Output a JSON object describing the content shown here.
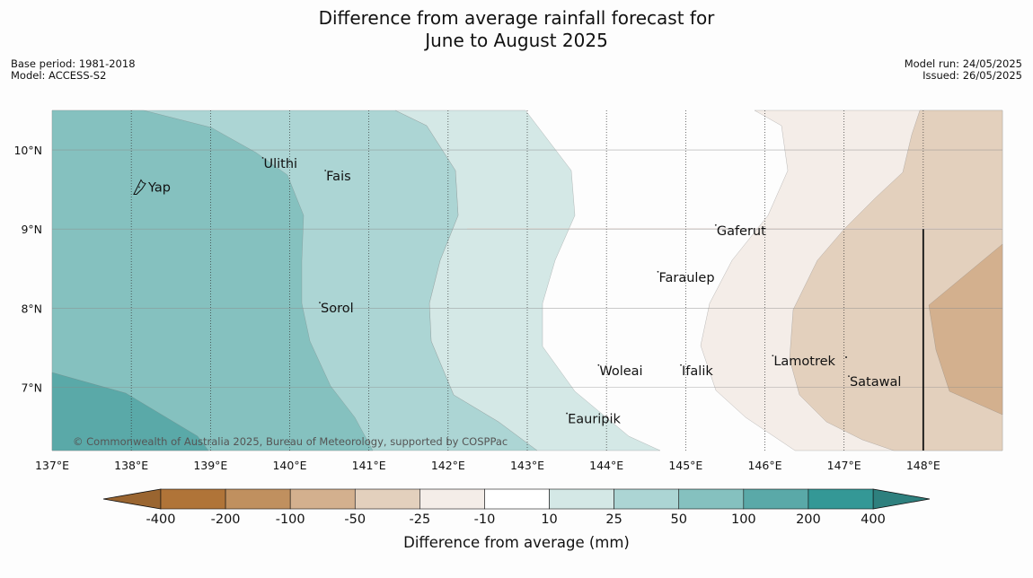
{
  "title_line1": "Difference from average rainfall forecast for",
  "title_line2": "June to August 2025",
  "meta": {
    "base_period": "Base period: 1981-2018",
    "model": "Model: ACCESS-S2",
    "model_run": "Model run: 24/05/2025",
    "issued": "Issued: 26/05/2025"
  },
  "copyright": "© Commonwealth of Australia 2025, Bureau of Meteorology, supported by COSPPac",
  "map": {
    "lon_range": [
      137,
      149
    ],
    "lat_range": [
      6.2,
      10.5
    ],
    "lon_ticks": [
      {
        "value": 137,
        "label": "137°E"
      },
      {
        "value": 138,
        "label": "138°E"
      },
      {
        "value": 139,
        "label": "139°E"
      },
      {
        "value": 140,
        "label": "140°E"
      },
      {
        "value": 141,
        "label": "141°E"
      },
      {
        "value": 142,
        "label": "142°E"
      },
      {
        "value": 143,
        "label": "143°E"
      },
      {
        "value": 144,
        "label": "144°E"
      },
      {
        "value": 145,
        "label": "145°E"
      },
      {
        "value": 146,
        "label": "146°E"
      },
      {
        "value": 147,
        "label": "147°E"
      },
      {
        "value": 148,
        "label": "148°E"
      }
    ],
    "lat_ticks": [
      {
        "value": 10,
        "label": "10°N"
      },
      {
        "value": 9,
        "label": "9°N"
      },
      {
        "value": 8,
        "label": "8°N"
      },
      {
        "value": 7,
        "label": "7°N"
      }
    ],
    "places": [
      {
        "name": "Yap",
        "lon": 138.1,
        "lat": 9.53
      },
      {
        "name": "Ulithi",
        "lon": 139.66,
        "lat": 9.9
      },
      {
        "name": "Fais",
        "lon": 140.45,
        "lat": 9.74
      },
      {
        "name": "Sorol",
        "lon": 140.38,
        "lat": 8.07
      },
      {
        "name": "Gaferut",
        "lon": 145.38,
        "lat": 9.05
      },
      {
        "name": "Faraulep",
        "lon": 144.65,
        "lat": 8.46
      },
      {
        "name": "Woleai",
        "lon": 143.9,
        "lat": 7.28
      },
      {
        "name": "Ifalik",
        "lon": 144.94,
        "lat": 7.28
      },
      {
        "name": "Lamotrek",
        "lon": 146.1,
        "lat": 7.4
      },
      {
        "name": "Satawal",
        "lon": 147.06,
        "lat": 7.14
      },
      {
        "name": "Eauripik",
        "lon": 143.5,
        "lat": 6.67
      }
    ]
  },
  "legend": {
    "title": "Difference from average (mm)",
    "labels": [
      "-400",
      "-200",
      "-100",
      "-50",
      "-25",
      "-10",
      "10",
      "25",
      "50",
      "100",
      "200",
      "400"
    ],
    "colors": [
      "#b07438",
      "#c0905f",
      "#d3b08e",
      "#e3d0bd",
      "#f4ede8",
      "#ffffff",
      "#d4e8e6",
      "#acd5d4",
      "#85c1bf",
      "#5aa9a8",
      "#349896"
    ],
    "under_color": "#9a6530",
    "over_color": "#2e807e"
  }
}
